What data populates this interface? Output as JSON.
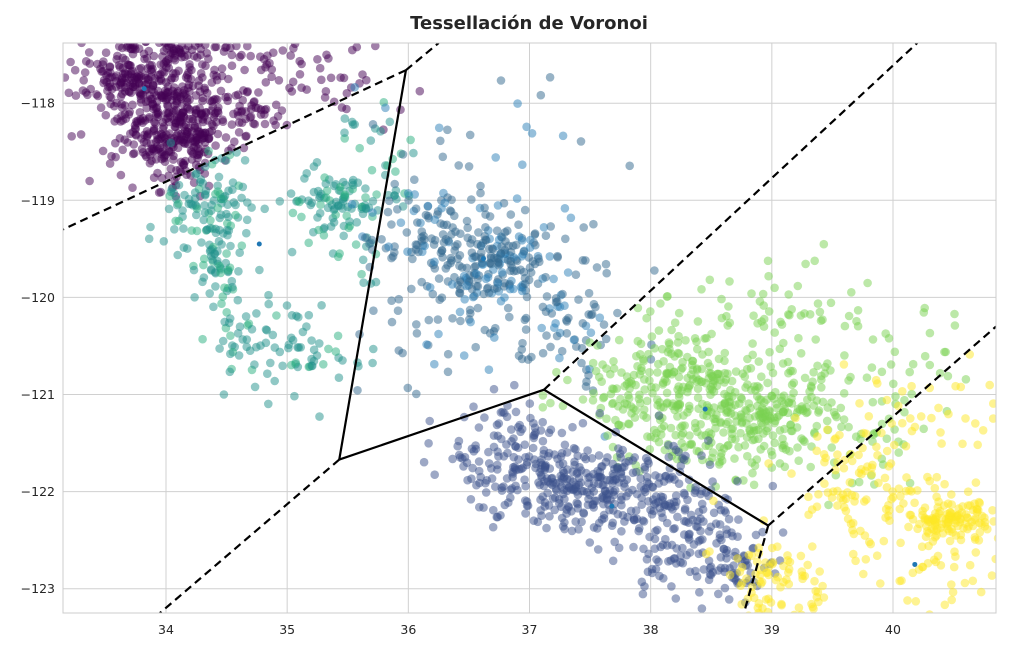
{
  "chart_data": {
    "type": "scatter",
    "title": "Tessellación de Voronoi",
    "xlabel": "",
    "ylabel": "",
    "xlim": [
      33.15,
      40.85
    ],
    "ylim": [
      -123.25,
      -117.38
    ],
    "xticks": [
      34,
      35,
      36,
      37,
      38,
      39,
      40
    ],
    "yticks": [
      -118,
      -119,
      -120,
      -121,
      -122,
      -123
    ],
    "grid": true,
    "colors": {
      "background": "#ffffff",
      "grid": "#d0d0d0",
      "frame": "#cccccc",
      "ridge_solid": "#000000",
      "ridge_dashed": "#000000",
      "centroid": "#1f77b4"
    },
    "centroids": [
      {
        "x": 33.82,
        "y": -117.85
      },
      {
        "x": 34.77,
        "y": -119.45
      },
      {
        "x": 36.62,
        "y": -119.6
      },
      {
        "x": 38.45,
        "y": -121.15
      },
      {
        "x": 37.68,
        "y": -122.15
      },
      {
        "x": 40.18,
        "y": -122.75
      }
    ],
    "voronoi_vertices": [
      {
        "x": 35.98,
        "y": -117.66
      },
      {
        "x": 35.43,
        "y": -121.67
      },
      {
        "x": 37.12,
        "y": -120.95
      },
      {
        "x": 38.97,
        "y": -122.35
      }
    ],
    "ridges_solid": [
      [
        [
          35.98,
          -117.66
        ],
        [
          35.43,
          -121.67
        ]
      ],
      [
        [
          35.43,
          -121.67
        ],
        [
          37.12,
          -120.95
        ]
      ],
      [
        [
          37.12,
          -120.95
        ],
        [
          38.97,
          -122.35
        ]
      ]
    ],
    "ridges_dashed": [
      [
        [
          35.98,
          -117.66
        ],
        [
          36.25,
          -117.38
        ]
      ],
      [
        [
          35.98,
          -117.66
        ],
        [
          33.15,
          -119.3
        ]
      ],
      [
        [
          35.43,
          -121.67
        ],
        [
          33.95,
          -123.25
        ]
      ],
      [
        [
          37.12,
          -120.95
        ],
        [
          40.2,
          -117.38
        ]
      ],
      [
        [
          38.97,
          -122.35
        ],
        [
          40.85,
          -120.3
        ]
      ],
      [
        [
          38.97,
          -122.35
        ],
        [
          38.77,
          -123.25
        ]
      ]
    ],
    "series": [
      {
        "color": "#440154",
        "clusters": [
          {
            "x": 33.95,
            "y": -118.05,
            "sx": 0.3,
            "sy": 0.35,
            "n": 320
          },
          {
            "x": 34.15,
            "y": -118.35,
            "sx": 0.2,
            "sy": 0.25,
            "n": 150
          },
          {
            "x": 33.7,
            "y": -117.75,
            "sx": 0.2,
            "sy": 0.1,
            "n": 90
          },
          {
            "x": 34.6,
            "y": -117.65,
            "sx": 0.6,
            "sy": 0.2,
            "n": 50
          },
          {
            "x": 34.7,
            "y": -118.1,
            "sx": 0.15,
            "sy": 0.1,
            "n": 35
          },
          {
            "x": 35.3,
            "y": -117.9,
            "sx": 0.4,
            "sy": 0.15,
            "n": 20
          },
          {
            "x": 34.2,
            "y": -117.45,
            "sx": 0.4,
            "sy": 0.05,
            "n": 60
          }
        ]
      },
      {
        "color": "#21918c",
        "secondary_color": "#2ab07f",
        "clusters": [
          {
            "x": 34.35,
            "y": -119.1,
            "sx": 0.2,
            "sy": 0.25,
            "n": 110
          },
          {
            "x": 34.45,
            "y": -119.7,
            "sx": 0.1,
            "sy": 0.2,
            "n": 50
          },
          {
            "x": 35.35,
            "y": -119.0,
            "sx": 0.2,
            "sy": 0.15,
            "n": 70
          },
          {
            "x": 34.75,
            "y": -120.3,
            "sx": 0.25,
            "sy": 0.2,
            "n": 40
          },
          {
            "x": 35.1,
            "y": -120.6,
            "sx": 0.3,
            "sy": 0.2,
            "n": 50
          },
          {
            "x": 35.6,
            "y": -119.3,
            "sx": 0.25,
            "sy": 0.35,
            "n": 40
          },
          {
            "x": 35.6,
            "y": -118.5,
            "sx": 0.25,
            "sy": 0.3,
            "n": 25
          }
        ]
      },
      {
        "color": "#31688e",
        "secondary_color": "#2c7fb8",
        "clusters": [
          {
            "x": 36.7,
            "y": -119.65,
            "sx": 0.3,
            "sy": 0.25,
            "n": 200
          },
          {
            "x": 36.2,
            "y": -119.3,
            "sx": 0.25,
            "sy": 0.2,
            "n": 90
          },
          {
            "x": 37.3,
            "y": -120.3,
            "sx": 0.3,
            "sy": 0.35,
            "n": 70
          },
          {
            "x": 36.5,
            "y": -118.5,
            "sx": 0.6,
            "sy": 0.4,
            "n": 30
          },
          {
            "x": 36.3,
            "y": -120.4,
            "sx": 0.4,
            "sy": 0.35,
            "n": 40
          }
        ]
      },
      {
        "color": "#7ad151",
        "clusters": [
          {
            "x": 38.6,
            "y": -121.2,
            "sx": 0.4,
            "sy": 0.3,
            "n": 280
          },
          {
            "x": 37.9,
            "y": -121.0,
            "sx": 0.3,
            "sy": 0.25,
            "n": 100
          },
          {
            "x": 39.1,
            "y": -121.0,
            "sx": 0.35,
            "sy": 0.25,
            "n": 80
          },
          {
            "x": 38.2,
            "y": -120.5,
            "sx": 0.3,
            "sy": 0.3,
            "n": 60
          },
          {
            "x": 39.2,
            "y": -120.2,
            "sx": 0.4,
            "sy": 0.25,
            "n": 50
          },
          {
            "x": 39.6,
            "y": -121.4,
            "sx": 0.3,
            "sy": 0.35,
            "n": 50
          },
          {
            "x": 40.2,
            "y": -120.7,
            "sx": 0.3,
            "sy": 0.3,
            "n": 25
          }
        ]
      },
      {
        "color": "#3b528b",
        "clusters": [
          {
            "x": 37.6,
            "y": -122.0,
            "sx": 0.45,
            "sy": 0.25,
            "n": 300
          },
          {
            "x": 36.9,
            "y": -121.75,
            "sx": 0.3,
            "sy": 0.2,
            "n": 100
          },
          {
            "x": 38.35,
            "y": -122.45,
            "sx": 0.3,
            "sy": 0.3,
            "n": 120
          },
          {
            "x": 38.7,
            "y": -122.8,
            "sx": 0.15,
            "sy": 0.2,
            "n": 50
          },
          {
            "x": 36.8,
            "y": -121.4,
            "sx": 0.3,
            "sy": 0.2,
            "n": 40
          }
        ]
      },
      {
        "color": "#fde725",
        "clusters": [
          {
            "x": 40.5,
            "y": -122.3,
            "sx": 0.15,
            "sy": 0.1,
            "n": 100
          },
          {
            "x": 40.1,
            "y": -122.15,
            "sx": 0.4,
            "sy": 0.25,
            "n": 80
          },
          {
            "x": 39.0,
            "y": -122.9,
            "sx": 0.25,
            "sy": 0.25,
            "n": 90
          },
          {
            "x": 39.7,
            "y": -121.7,
            "sx": 0.2,
            "sy": 0.3,
            "n": 50
          },
          {
            "x": 40.3,
            "y": -121.1,
            "sx": 0.35,
            "sy": 0.3,
            "n": 30
          },
          {
            "x": 40.4,
            "y": -122.9,
            "sx": 0.4,
            "sy": 0.25,
            "n": 40
          }
        ]
      }
    ]
  }
}
